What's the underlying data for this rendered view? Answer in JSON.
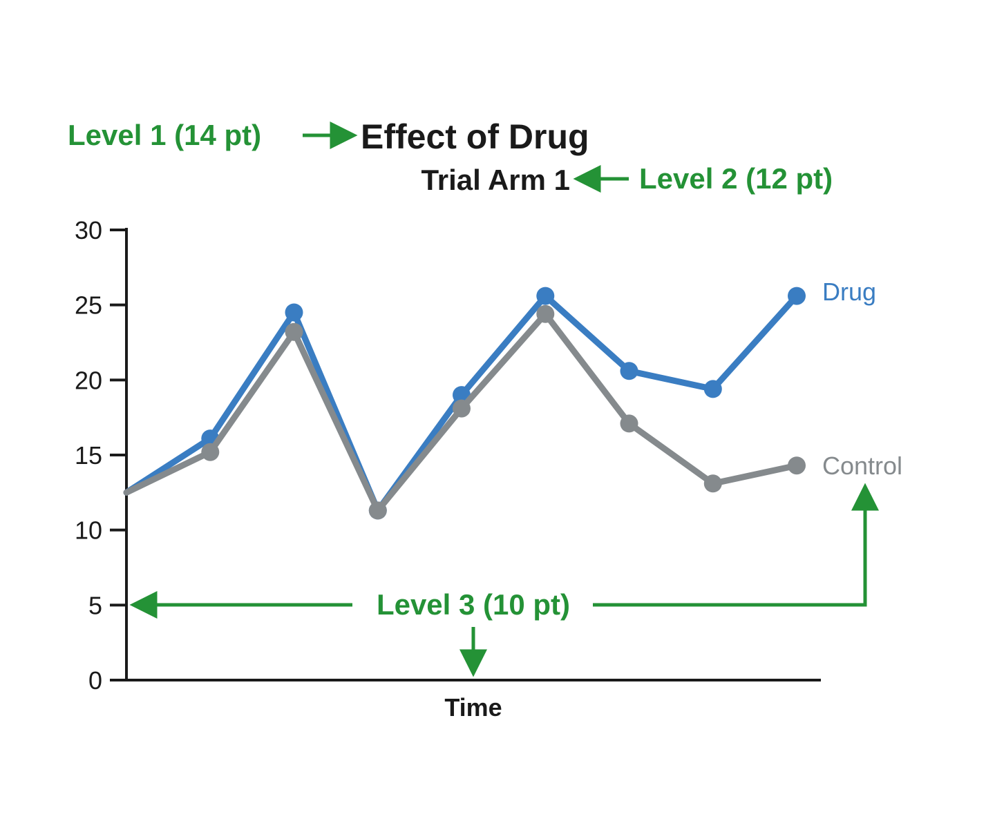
{
  "chart_data": {
    "type": "line",
    "title": "Effect of Drug",
    "subtitle": "Trial Arm 1",
    "xlabel": "Time",
    "ylabel": "",
    "x": [
      0,
      1,
      2,
      3,
      4,
      5,
      6,
      7,
      8
    ],
    "ylim": [
      0,
      30
    ],
    "yticks": [
      "0",
      "5",
      "10",
      "15",
      "20",
      "25",
      "30"
    ],
    "grid": false,
    "series": [
      {
        "name": "Control",
        "color": "#858a8d",
        "values": [
          12.5,
          15.2,
          23.2,
          11.3,
          18.1,
          24.4,
          17.1,
          13.1,
          14.3
        ]
      },
      {
        "name": "Drug",
        "color": "#3a7dc2",
        "values": [
          12.5,
          16.1,
          24.5,
          11.3,
          19.0,
          25.6,
          20.6,
          19.4,
          25.6
        ]
      }
    ],
    "annotations": [
      {
        "id": "level1",
        "text": "Level 1 (14 pt)"
      },
      {
        "id": "level2",
        "text": "Level 2 (12 pt)"
      },
      {
        "id": "level3",
        "text": "Level 3 (10 pt)"
      }
    ],
    "annotation_color": "#249236"
  }
}
